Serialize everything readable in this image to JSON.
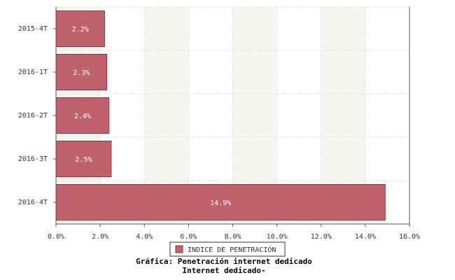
{
  "chart_data": {
    "type": "bar",
    "orientation": "horizontal",
    "title": "Gráfica: Penetración internet dedicado",
    "subtitle": "Internet dedicado-",
    "categories": [
      "2015-4T",
      "2016-1T",
      "2016-2T",
      "2016-3T",
      "2016-4T"
    ],
    "series": [
      {
        "name": "INDICE DE PENETRACIÓN",
        "color": "#c0626b",
        "values": [
          2.2,
          2.3,
          2.4,
          2.5,
          14.9
        ],
        "value_labels": [
          "2.2%",
          "2.3%",
          "2.4%",
          "2.5%",
          "14.9%"
        ]
      }
    ],
    "xlim": [
      0,
      16
    ],
    "xticks": [
      {
        "value": 0,
        "label": "0.0%"
      },
      {
        "value": 2,
        "label": "2.0%"
      },
      {
        "value": 4,
        "label": "4.0%"
      },
      {
        "value": 6,
        "label": "6.0%"
      },
      {
        "value": 8,
        "label": "8.0%"
      },
      {
        "value": 10,
        "label": "10.0%"
      },
      {
        "value": 12,
        "label": "12.0%"
      },
      {
        "value": 14,
        "label": "14.0%"
      },
      {
        "value": 16,
        "label": "16.0%"
      }
    ],
    "grid": true,
    "legend": "bottom"
  }
}
